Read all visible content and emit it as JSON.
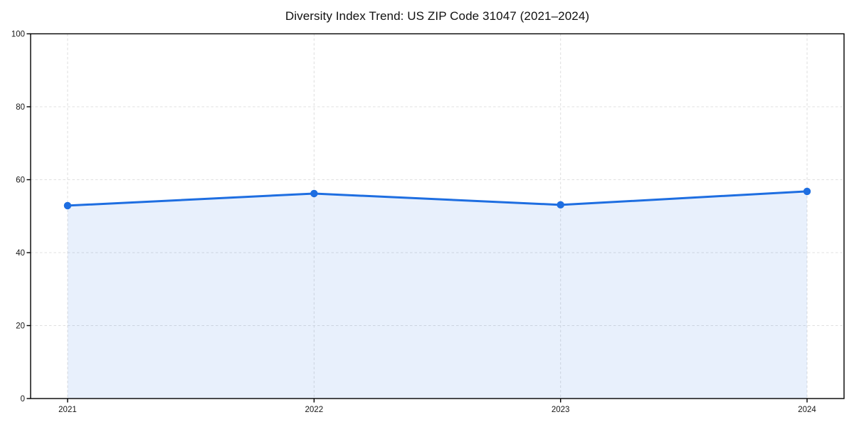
{
  "chart_data": {
    "type": "area",
    "title": "Diversity Index Trend: US ZIP Code 31047 (2021–2024)",
    "xlabel": "",
    "ylabel": "",
    "x": [
      2021,
      2022,
      2023,
      2024
    ],
    "categories": [
      "2021",
      "2022",
      "2023",
      "2024"
    ],
    "values": [
      52.9,
      56.2,
      53.1,
      56.8
    ],
    "ylim": [
      0,
      100
    ],
    "yticks": [
      0,
      20,
      40,
      60,
      80,
      100
    ],
    "ytick_labels": [
      "0",
      "20",
      "40",
      "60",
      "80",
      "100"
    ],
    "x_margin": 0.05,
    "grid": true,
    "grid_style": "dashed",
    "legend": false,
    "colors": {
      "line": "#1e6ee1",
      "marker": "#1e6ee1",
      "fill": "#1e6ee1",
      "fill_opacity": 0.1,
      "grid": "#e0e0e0",
      "spine": "#000000",
      "tick_text": "#161616",
      "title_text": "#111111",
      "background": "#ffffff"
    }
  }
}
